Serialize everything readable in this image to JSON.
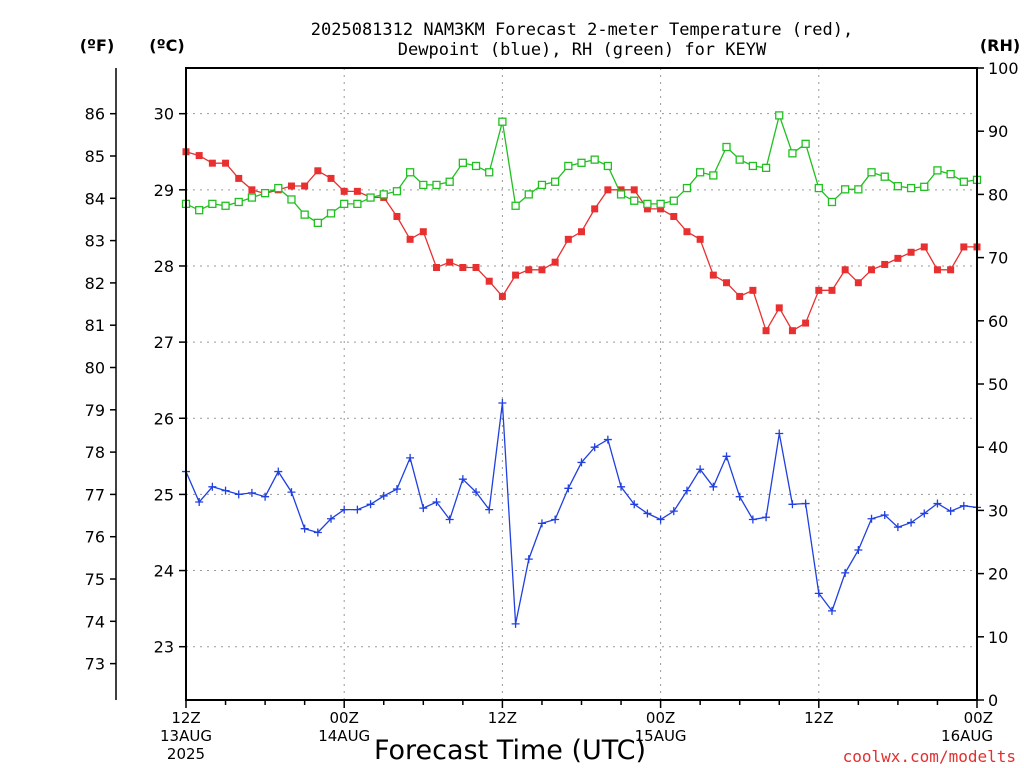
{
  "header": {
    "title_line1": "2025081312 NAM3KM Forecast 2-meter Temperature (red),",
    "title_line2": "Dewpoint (blue), RH (green) for KEYW"
  },
  "units": {
    "fahrenheit": "(ºF)",
    "celsius": "(ºC)",
    "rh": "(RH)"
  },
  "xaxis": {
    "label": "Forecast Time (UTC)",
    "ticks": [
      {
        "hour": 0,
        "line1": "12Z",
        "line2": "13AUG",
        "line3": "2025"
      },
      {
        "hour": 12,
        "line1": "00Z",
        "line2": "14AUG",
        "line3": ""
      },
      {
        "hour": 24,
        "line1": "12Z",
        "line2": "",
        "line3": ""
      },
      {
        "hour": 36,
        "line1": "00Z",
        "line2": "15AUG",
        "line3": ""
      },
      {
        "hour": 48,
        "line1": "12Z",
        "line2": "",
        "line3": ""
      },
      {
        "hour": 60,
        "line1": "00Z",
        "line2": "16AUG",
        "line3": ""
      }
    ]
  },
  "credit": {
    "text": "coolwx.com/modelts",
    "color": "#e03030"
  },
  "chart_data": {
    "type": "line",
    "x_unit": "forecast hour from 2025-08-13 12Z",
    "xlim": [
      0,
      60
    ],
    "celsius_ylim": [
      22.3,
      30.6
    ],
    "celsius_ticks": [
      23,
      24,
      25,
      26,
      27,
      28,
      29,
      30
    ],
    "fahrenheit_ticks": [
      73,
      74,
      75,
      76,
      77,
      78,
      79,
      80,
      81,
      82,
      83,
      84,
      85,
      86
    ],
    "rh_ylim": [
      0,
      100
    ],
    "rh_ticks": [
      0,
      10,
      20,
      30,
      40,
      50,
      60,
      70,
      80,
      90,
      100
    ],
    "grid": true,
    "series": [
      {
        "name": "Temperature",
        "color": "#e83030",
        "axis": "celsius",
        "marker": "filled-square",
        "x": [
          0,
          1,
          2,
          3,
          4,
          5,
          6,
          7,
          8,
          9,
          10,
          11,
          12,
          13,
          14,
          15,
          16,
          17,
          18,
          19,
          20,
          21,
          22,
          23,
          24,
          25,
          26,
          27,
          28,
          29,
          30,
          31,
          32,
          33,
          34,
          35,
          36,
          37,
          38,
          39,
          40,
          41,
          42,
          43,
          44,
          45,
          46,
          47,
          48,
          49,
          50,
          51,
          52,
          53,
          54,
          55,
          56,
          57,
          58,
          59,
          60
        ],
        "values": [
          29.5,
          29.45,
          29.35,
          29.35,
          29.15,
          29.0,
          28.95,
          29.0,
          29.05,
          29.05,
          29.25,
          29.15,
          28.98,
          28.98,
          28.9,
          28.9,
          28.65,
          28.35,
          28.45,
          27.98,
          28.05,
          27.98,
          27.98,
          27.8,
          27.6,
          27.88,
          27.95,
          27.95,
          28.05,
          28.35,
          28.45,
          28.75,
          29.0,
          29.0,
          29.0,
          28.75,
          28.75,
          28.65,
          28.45,
          28.35,
          27.88,
          27.78,
          27.6,
          27.68,
          27.15,
          27.45,
          27.15,
          27.25,
          27.68,
          27.68,
          27.95,
          27.78,
          27.95,
          28.02,
          28.1,
          28.18,
          28.25,
          27.95,
          27.95,
          28.25,
          28.25
        ]
      },
      {
        "name": "Dewpoint",
        "color": "#2040e0",
        "axis": "celsius",
        "marker": "plus",
        "x": [
          0,
          1,
          2,
          3,
          4,
          5,
          6,
          7,
          8,
          9,
          10,
          11,
          12,
          13,
          14,
          15,
          16,
          17,
          18,
          19,
          20,
          21,
          22,
          23,
          24,
          25,
          26,
          27,
          28,
          29,
          30,
          31,
          32,
          33,
          34,
          35,
          36,
          37,
          38,
          39,
          40,
          41,
          42,
          43,
          44,
          45,
          46,
          47,
          48,
          49,
          50,
          51,
          52,
          53,
          54,
          55,
          56,
          57,
          58,
          59,
          60
        ],
        "values": [
          25.3,
          24.9,
          25.1,
          25.05,
          25.0,
          25.02,
          24.97,
          25.3,
          25.03,
          24.55,
          24.5,
          24.68,
          24.8,
          24.8,
          24.87,
          24.98,
          25.07,
          25.48,
          24.82,
          24.9,
          24.67,
          25.2,
          25.03,
          24.8,
          26.2,
          23.3,
          24.15,
          24.62,
          24.67,
          25.08,
          25.42,
          25.62,
          25.72,
          25.1,
          24.87,
          24.75,
          24.67,
          24.78,
          25.05,
          25.33,
          25.1,
          25.5,
          24.97,
          24.67,
          24.7,
          25.8,
          24.87,
          24.88,
          23.7,
          23.47,
          23.97,
          24.27,
          24.68,
          24.73,
          24.57,
          24.63,
          24.75,
          24.88,
          24.78,
          24.85,
          24.83
        ]
      },
      {
        "name": "RH",
        "color": "#20c020",
        "axis": "rh",
        "marker": "open-square",
        "x": [
          0,
          1,
          2,
          3,
          4,
          5,
          6,
          7,
          8,
          9,
          10,
          11,
          12,
          13,
          14,
          15,
          16,
          17,
          18,
          19,
          20,
          21,
          22,
          23,
          24,
          25,
          26,
          27,
          28,
          29,
          30,
          31,
          32,
          33,
          34,
          35,
          36,
          37,
          38,
          39,
          40,
          41,
          42,
          43,
          44,
          45,
          46,
          47,
          48,
          49,
          50,
          51,
          52,
          53,
          54,
          55,
          56,
          57,
          58,
          59,
          60
        ],
        "values": [
          78.5,
          77.5,
          78.5,
          78.2,
          78.8,
          79.5,
          80.2,
          81.0,
          79.2,
          76.8,
          75.5,
          77.0,
          78.5,
          78.5,
          79.5,
          80.0,
          80.5,
          83.5,
          81.5,
          81.5,
          82.0,
          85.0,
          84.5,
          83.5,
          91.5,
          78.2,
          80.0,
          81.5,
          82.0,
          84.5,
          85.0,
          85.5,
          84.5,
          80.0,
          79.0,
          78.5,
          78.5,
          79.0,
          81.0,
          83.5,
          83.0,
          87.5,
          85.5,
          84.5,
          84.2,
          92.5,
          86.5,
          88.0,
          81.0,
          78.8,
          80.8,
          80.8,
          83.5,
          82.8,
          81.3,
          81.0,
          81.2,
          83.8,
          83.2,
          82.0,
          82.3
        ]
      }
    ]
  }
}
